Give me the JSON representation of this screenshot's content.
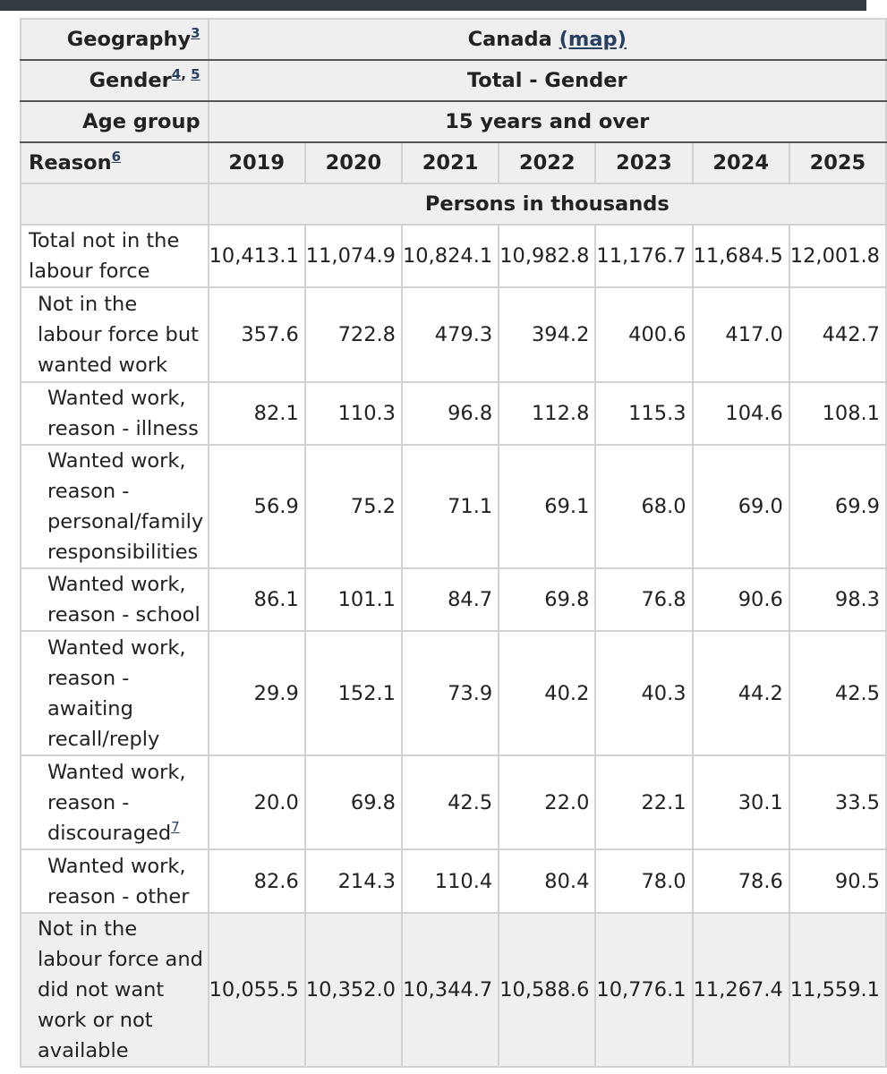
{
  "header": {
    "geography_label": "Geography",
    "geography_fn": "3",
    "geography_value": "Canada",
    "map_link": "(map)",
    "gender_label": "Gender",
    "gender_fn_a": "4",
    "gender_fn_b": "5",
    "gender_value": "Total - Gender",
    "age_label": "Age group",
    "age_value": "15 years and over",
    "reason_label": "Reason",
    "reason_fn": "6",
    "years": [
      "2019",
      "2020",
      "2021",
      "2022",
      "2023",
      "2024",
      "2025"
    ],
    "units": "Persons in thousands"
  },
  "rows": [
    {
      "label": "Total not in the labour force",
      "fn": "",
      "values": [
        "10,413.1",
        "11,074.9",
        "10,824.1",
        "10,982.8",
        "11,176.7",
        "11,684.5",
        "12,001.8"
      ]
    },
    {
      "label": "Not in the labour force but wanted work",
      "fn": "",
      "values": [
        "357.6",
        "722.8",
        "479.3",
        "394.2",
        "400.6",
        "417.0",
        "442.7"
      ]
    },
    {
      "label": "Wanted work, reason - illness",
      "fn": "",
      "values": [
        "82.1",
        "110.3",
        "96.8",
        "112.8",
        "115.3",
        "104.6",
        "108.1"
      ]
    },
    {
      "label": "Wanted work, reason - personal/family responsibilities",
      "fn": "",
      "values": [
        "56.9",
        "75.2",
        "71.1",
        "69.1",
        "68.0",
        "69.0",
        "69.9"
      ]
    },
    {
      "label": "Wanted work, reason - school",
      "fn": "",
      "values": [
        "86.1",
        "101.1",
        "84.7",
        "69.8",
        "76.8",
        "90.6",
        "98.3"
      ]
    },
    {
      "label": "Wanted work, reason - awaiting recall/reply",
      "fn": "",
      "values": [
        "29.9",
        "152.1",
        "73.9",
        "40.2",
        "40.3",
        "44.2",
        "42.5"
      ]
    },
    {
      "label": "Wanted work, reason - discouraged",
      "fn": "7",
      "values": [
        "20.0",
        "69.8",
        "42.5",
        "22.0",
        "22.1",
        "30.1",
        "33.5"
      ]
    },
    {
      "label": "Wanted work, reason - other",
      "fn": "",
      "values": [
        "82.6",
        "214.3",
        "110.4",
        "80.4",
        "78.0",
        "78.6",
        "90.5"
      ]
    },
    {
      "label": "Not in the labour force and did not want work or not available",
      "fn": "",
      "values": [
        "10,055.5",
        "10,352.0",
        "10,344.7",
        "10,588.6",
        "10,776.1",
        "11,267.4",
        "11,559.1"
      ]
    }
  ]
}
